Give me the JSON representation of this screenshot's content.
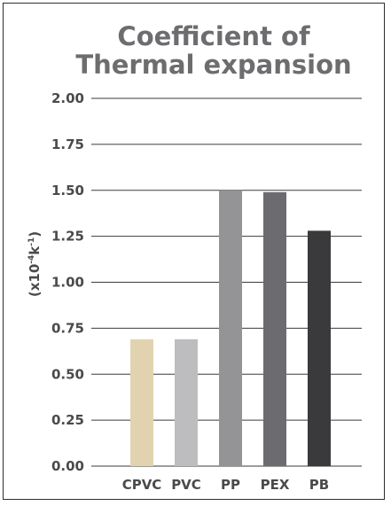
{
  "chart_data": {
    "type": "bar",
    "title_lines": [
      "Coefficient of",
      "Thermal expansion"
    ],
    "ylabel": {
      "prefix": "(x10",
      "exp1": "-4",
      "mid": "k",
      "exp2": "-1",
      "suffix": ")"
    },
    "xlabel": "",
    "categories": [
      "CPVC",
      "PVC",
      "PP",
      "PEX",
      "PB"
    ],
    "values": [
      0.69,
      0.69,
      1.5,
      1.49,
      1.28
    ],
    "colors": [
      "#e2d3b0",
      "#bdbdbf",
      "#949497",
      "#6c6c70",
      "#3a3a3c"
    ],
    "ylim": [
      0,
      2.0
    ],
    "yticks": [
      "0.00",
      "0.25",
      "0.50",
      "0.75",
      "1.00",
      "1.25",
      "1.50",
      "1.75",
      "2.00"
    ],
    "grid": true
  }
}
